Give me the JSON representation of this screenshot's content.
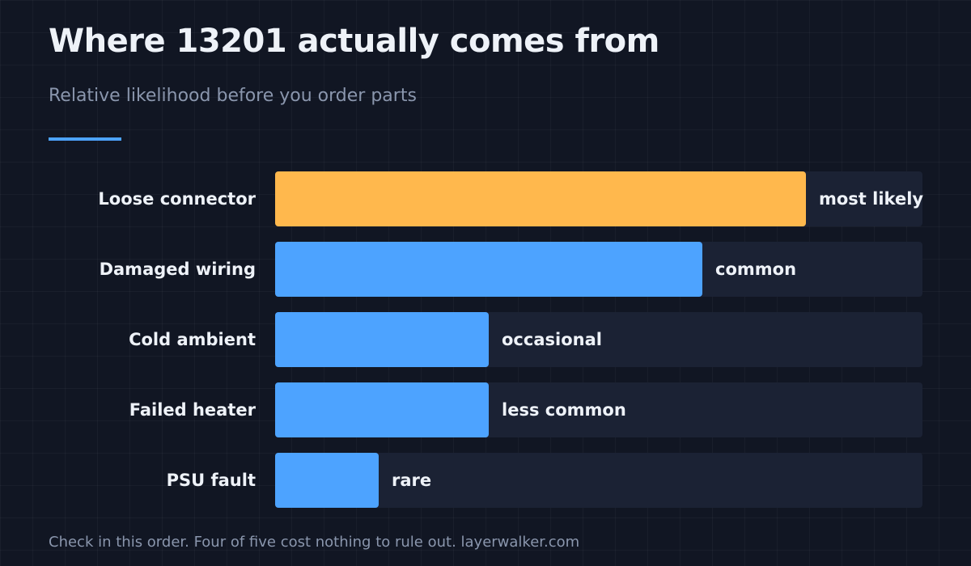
{
  "header": {
    "title": "Where 13201 actually comes from",
    "subtitle": "Relative likelihood before you order parts"
  },
  "footer": {
    "note": "Check in this order. Four of five cost nothing to rule out. layerwalker.com"
  },
  "colors": {
    "background": "#111623",
    "track": "#1b2234",
    "highlight": "#ffb84d",
    "bar": "#4da3ff",
    "accent_rule": "#4da3ff",
    "text": "#eef2f8",
    "muted_text": "#8a96ad"
  },
  "chart_data": {
    "type": "bar",
    "orientation": "horizontal",
    "title": "Where 13201 actually comes from",
    "subtitle": "Relative likelihood before you order parts",
    "categories": [
      "Loose connector",
      "Damaged wiring",
      "Cold ambient",
      "Failed heater",
      "PSU fault"
    ],
    "values": [
      82,
      66,
      33,
      33,
      16
    ],
    "value_labels": [
      "most likely",
      "common",
      "occasional",
      "less common",
      "rare"
    ],
    "highlight_index": 0,
    "xlim": [
      0,
      100
    ],
    "xlabel": "",
    "ylabel": "",
    "grid": false,
    "legend": "none"
  }
}
